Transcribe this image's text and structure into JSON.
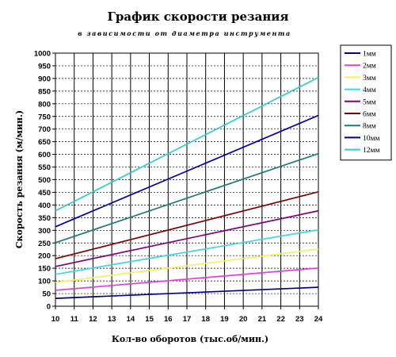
{
  "chart_data": {
    "type": "line",
    "title": "График скорости резания",
    "subtitle": "в зависимости от диаметра инструмента",
    "xlabel": "Кол-во оборотов (тыс.об/мин.)",
    "ylabel": "Скорость резания (м/мин.)",
    "x": [
      10,
      24
    ],
    "xticks": [
      10,
      11,
      12,
      13,
      14,
      15,
      16,
      17,
      18,
      19,
      20,
      21,
      22,
      23,
      24
    ],
    "xlim": [
      10,
      24
    ],
    "ylim": [
      0,
      1000
    ],
    "yticks": [
      0,
      50,
      100,
      150,
      200,
      250,
      300,
      350,
      400,
      450,
      500,
      550,
      600,
      650,
      700,
      750,
      800,
      850,
      900,
      950,
      1000
    ],
    "grid": true,
    "legend_position": "right",
    "series": [
      {
        "name": "1мм",
        "color": "#000080",
        "values": [
          31,
          75
        ]
      },
      {
        "name": "2мм",
        "color": "#e040e0",
        "values": [
          63,
          151
        ]
      },
      {
        "name": "3мм",
        "color": "#f2f25a",
        "values": [
          94,
          226
        ]
      },
      {
        "name": "4мм",
        "color": "#3cd6e6",
        "values": [
          126,
          302
        ]
      },
      {
        "name": "5мм",
        "color": "#800080",
        "values": [
          157,
          377
        ]
      },
      {
        "name": "6мм",
        "color": "#800000",
        "values": [
          188,
          452
        ]
      },
      {
        "name": "8мм",
        "color": "#1a7a7a",
        "values": [
          251,
          603
        ]
      },
      {
        "name": "10мм",
        "color": "#0000a0",
        "values": [
          314,
          754
        ]
      },
      {
        "name": "12мм",
        "color": "#33cccc",
        "values": [
          377,
          904
        ]
      }
    ]
  }
}
